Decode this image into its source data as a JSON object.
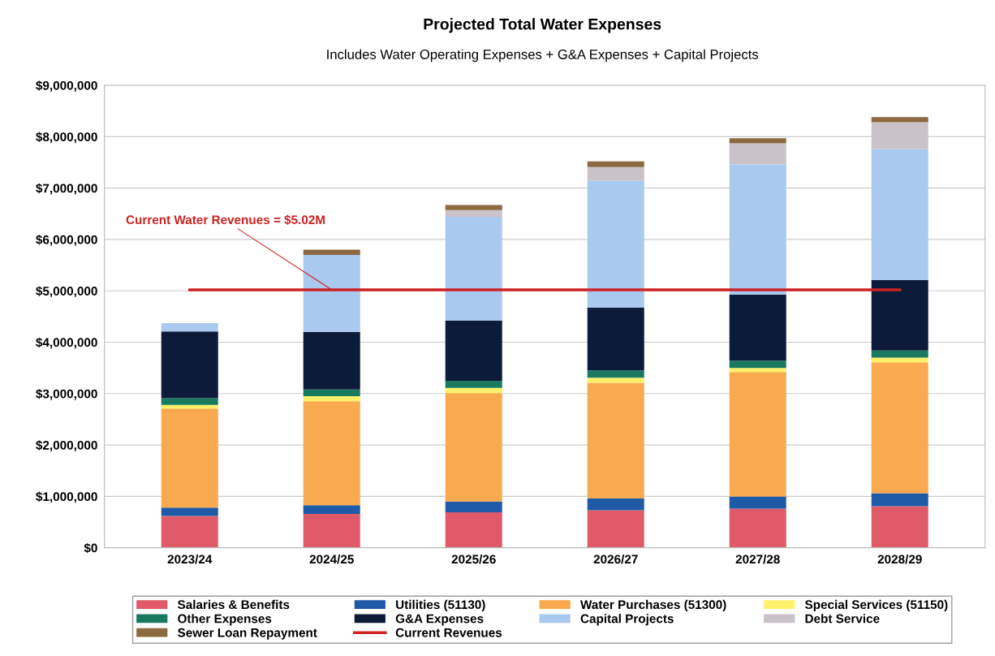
{
  "chart_data": {
    "type": "bar",
    "stacked": true,
    "title": "Projected Total Water Expenses",
    "subtitle": "Includes Water Operating Expenses + G&A Expenses + Capital Projects",
    "categories": [
      "2023/24",
      "2024/25",
      "2025/26",
      "2026/27",
      "2027/28",
      "2028/29"
    ],
    "series": [
      {
        "name": "Salaries & Benefits",
        "color": "#e05a6a",
        "values": [
          620000,
          660000,
          690000,
          730000,
          760000,
          810000
        ]
      },
      {
        "name": "Utilities (51130)",
        "color": "#1f5aa6",
        "values": [
          160000,
          170000,
          210000,
          230000,
          240000,
          250000
        ]
      },
      {
        "name": "Water Purchases (51300)",
        "color": "#f9a94e",
        "values": [
          1930000,
          2020000,
          2110000,
          2250000,
          2420000,
          2550000
        ]
      },
      {
        "name": "Special Services (51150)",
        "color": "#fff06a",
        "values": [
          70000,
          100000,
          100000,
          100000,
          80000,
          90000
        ]
      },
      {
        "name": "Other Expenses",
        "color": "#1a7a60",
        "values": [
          130000,
          130000,
          140000,
          140000,
          140000,
          140000
        ]
      },
      {
        "name": "G&A Expenses",
        "color": "#0d1b3a",
        "values": [
          1300000,
          1120000,
          1170000,
          1220000,
          1290000,
          1370000
        ]
      },
      {
        "name": "Capital Projects",
        "color": "#a9c9ef",
        "values": [
          160000,
          1500000,
          2020000,
          2470000,
          2530000,
          2550000
        ]
      },
      {
        "name": "Debt Service",
        "color": "#c9c2c8",
        "values": [
          0,
          0,
          130000,
          270000,
          410000,
          520000
        ]
      },
      {
        "name": "Sewer Loan Repayment",
        "color": "#8b6a42",
        "values": [
          0,
          100000,
          100000,
          110000,
          100000,
          100000
        ]
      },
      {
        "name": "Current Revenues",
        "type": "line",
        "color": "#cc2222",
        "values": [
          5020000,
          5020000,
          5020000,
          5020000,
          5020000,
          5020000
        ]
      }
    ],
    "ylim": [
      0,
      9000000
    ],
    "yticks": [
      {
        "value": 0,
        "label": "$0"
      },
      {
        "value": 1000000,
        "label": "$1,000,000"
      },
      {
        "value": 2000000,
        "label": "$2,000,000"
      },
      {
        "value": 3000000,
        "label": "$3,000,000"
      },
      {
        "value": 4000000,
        "label": "$4,000,000"
      },
      {
        "value": 5000000,
        "label": "$5,000,000"
      },
      {
        "value": 6000000,
        "label": "$6,000,000"
      },
      {
        "value": 7000000,
        "label": "$7,000,000"
      },
      {
        "value": 8000000,
        "label": "$8,000,000"
      },
      {
        "value": 9000000,
        "label": "$9,000,000"
      }
    ],
    "annotations": [
      {
        "text": "Current Water Revenues = $5.02M",
        "x": "2024/25",
        "y": 5020000
      }
    ],
    "grid": "y",
    "legend": "bottom"
  }
}
